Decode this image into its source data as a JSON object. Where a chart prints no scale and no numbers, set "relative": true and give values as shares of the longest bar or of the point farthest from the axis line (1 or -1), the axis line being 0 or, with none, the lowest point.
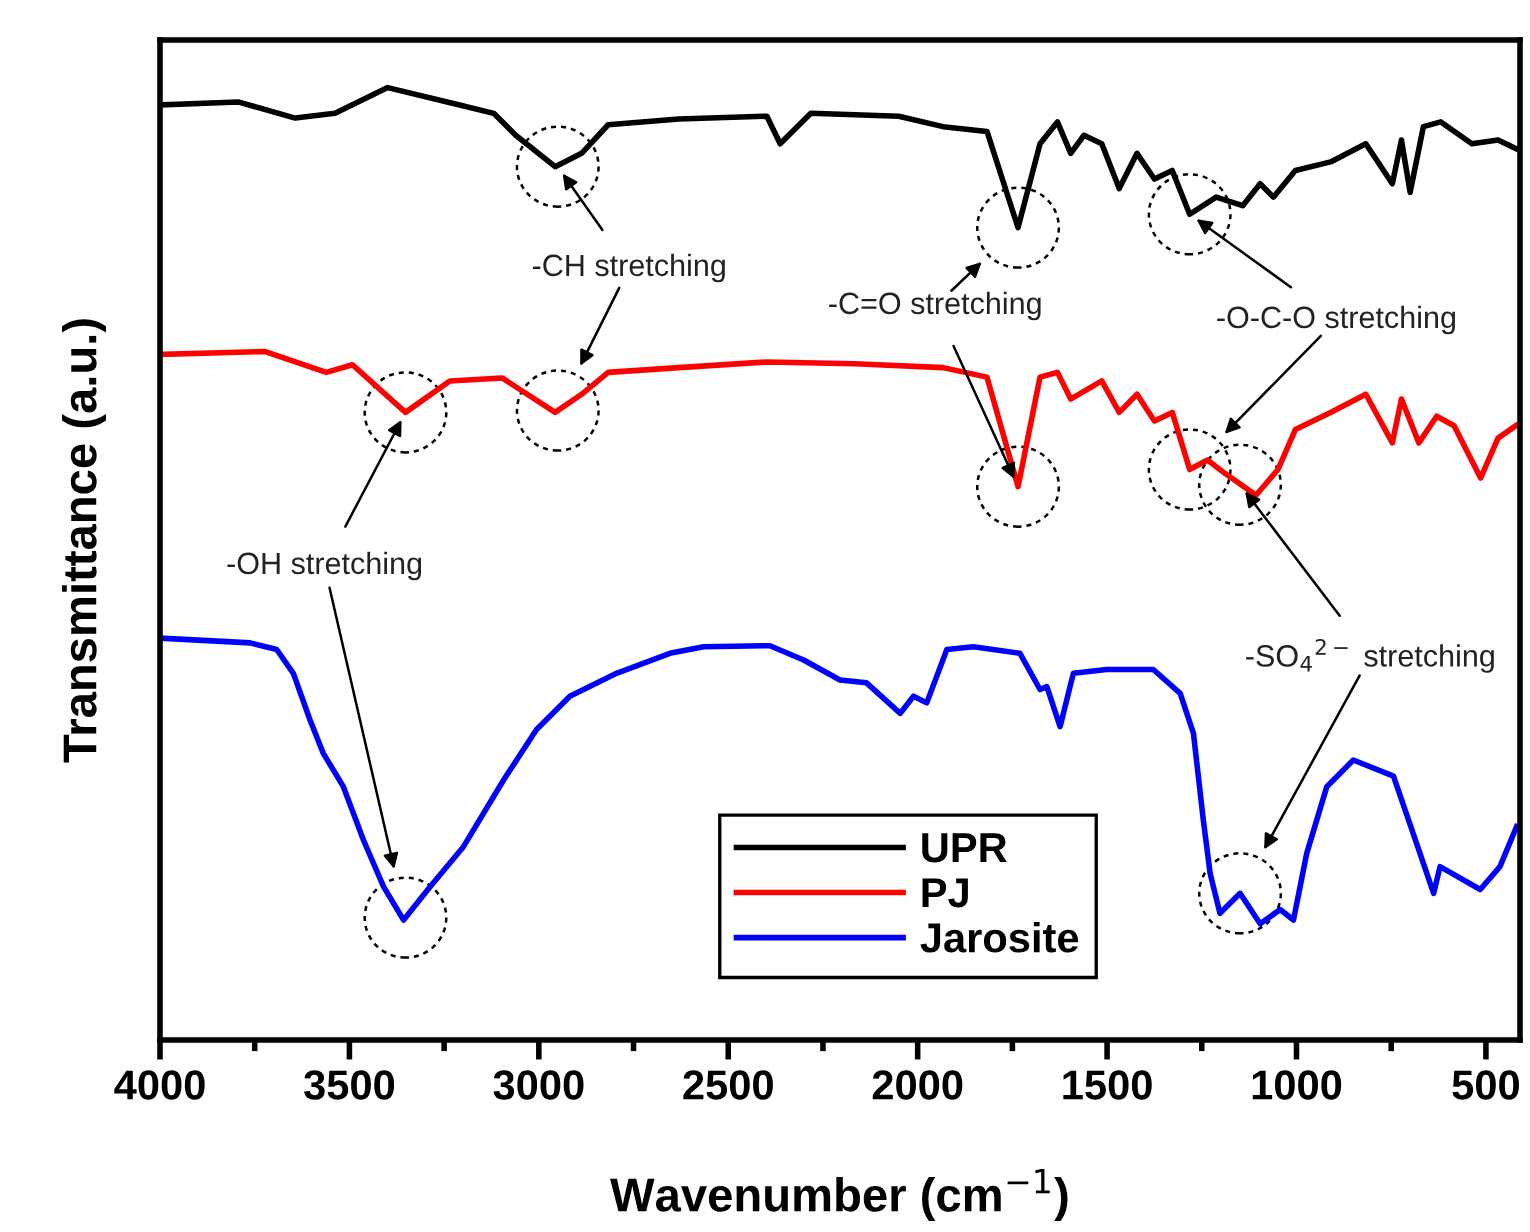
{
  "chart_data": {
    "type": "line",
    "xlabel": "Wavenumber (cm$^{−1}$)",
    "ylabel": "Transmittance (a.u.)",
    "relative": true,
    "tick_labels": "x",
    "legend": "bottom",
    "grid": false,
    "xlim": [
      4000,
      410
    ],
    "xticks": [
      4000,
      {
        "value": 3750,
        "label": null
      },
      3500,
      {
        "value": 3250,
        "label": null
      },
      3000,
      {
        "value": 2750,
        "label": null
      },
      2500,
      {
        "value": 2250,
        "label": null
      },
      2000,
      {
        "value": 1750,
        "label": null
      },
      1500,
      {
        "value": 1250,
        "label": null
      },
      1000,
      {
        "value": 750,
        "label": null
      },
      500
    ],
    "series": [
      {
        "name": "UPR",
        "color": "#000000",
        "x": [
          3992,
          3794,
          3643,
          3538,
          3399,
          3212,
          3119,
          3061,
          2957,
          2887,
          2817,
          2631,
          2398,
          2363,
          2282,
          2050,
          1933,
          1817,
          1735,
          1677,
          1631,
          1596,
          1561,
          1514,
          1468,
          1421,
          1375,
          1328,
          1282,
          1212,
          1142,
          1096,
          1061,
          1003,
          910,
          817,
          747,
          723,
          700,
          665,
          619,
          537,
          468,
          421
        ],
        "values": [
          0.982,
          0.985,
          0.968,
          0.973,
          1.0,
          0.982,
          0.973,
          0.95,
          0.917,
          0.931,
          0.961,
          0.967,
          0.97,
          0.941,
          0.973,
          0.97,
          0.959,
          0.954,
          0.853,
          0.941,
          0.964,
          0.931,
          0.95,
          0.941,
          0.894,
          0.931,
          0.904,
          0.913,
          0.867,
          0.885,
          0.876,
          0.899,
          0.885,
          0.913,
          0.922,
          0.941,
          0.899,
          0.945,
          0.89,
          0.959,
          0.964,
          0.941,
          0.945,
          0.936
        ]
      },
      {
        "name": "PJ",
        "color": "#ff0000",
        "x": [
          3992,
          3724,
          3561,
          3492,
          3352,
          3235,
          3096,
          3050,
          2957,
          2887,
          2817,
          2631,
          2398,
          2166,
          1933,
          1817,
          1735,
          1677,
          1631,
          1596,
          1514,
          1468,
          1421,
          1375,
          1328,
          1282,
          1235,
          1189,
          1107,
          1049,
          1003,
          910,
          817,
          747,
          723,
          677,
          630,
          584,
          514,
          468,
          421
        ],
        "values": [
          0.72,
          0.723,
          0.701,
          0.709,
          0.659,
          0.692,
          0.695,
          0.683,
          0.659,
          0.678,
          0.701,
          0.706,
          0.712,
          0.71,
          0.706,
          0.696,
          0.581,
          0.696,
          0.701,
          0.673,
          0.692,
          0.659,
          0.678,
          0.65,
          0.659,
          0.599,
          0.609,
          0.595,
          0.572,
          0.599,
          0.641,
          0.659,
          0.678,
          0.627,
          0.673,
          0.627,
          0.655,
          0.645,
          0.59,
          0.632,
          0.645
        ]
      },
      {
        "name": "Jarosite",
        "color": "#0000ff",
        "x": [
          4000,
          3762,
          3692,
          3648,
          3604,
          3569,
          3516,
          3463,
          3410,
          3357,
          3287,
          3199,
          3093,
          3006,
          2918,
          2795,
          2654,
          2565,
          2390,
          2301,
          2205,
          2135,
          2046,
          2011,
          1976,
          1923,
          1853,
          1730,
          1677,
          1659,
          1624,
          1589,
          1501,
          1378,
          1307,
          1272,
          1246,
          1228,
          1202,
          1149,
          1096,
          1043,
          1008,
          973,
          920,
          850,
          744,
          674,
          638,
          621,
          515,
          463,
          419
        ],
        "values": [
          0.422,
          0.417,
          0.41,
          0.385,
          0.336,
          0.301,
          0.266,
          0.21,
          0.161,
          0.126,
          0.161,
          0.203,
          0.273,
          0.326,
          0.361,
          0.385,
          0.406,
          0.413,
          0.414,
          0.399,
          0.378,
          0.375,
          0.343,
          0.361,
          0.354,
          0.41,
          0.413,
          0.406,
          0.368,
          0.371,
          0.329,
          0.385,
          0.389,
          0.389,
          0.364,
          0.322,
          0.231,
          0.175,
          0.133,
          0.154,
          0.122,
          0.137,
          0.126,
          0.196,
          0.266,
          0.294,
          0.277,
          0.196,
          0.154,
          0.182,
          0.158,
          0.182,
          0.224
        ]
      }
    ],
    "annotations": [
      {
        "text": "-CH stretching",
        "x": 2950,
        "y": 0.917
      },
      {
        "text": "-C=O stretching",
        "x": 1735,
        "y": 0.581
      },
      {
        "text": "-O-C-O stretching",
        "x": 1282,
        "y": 0.867
      },
      {
        "text": "-OH stretching",
        "x": 3352,
        "y": 0.659
      },
      {
        "text": "-SO$_{4}$$^{2−}$ stretching",
        "x": 1149,
        "y": 0.583
      }
    ]
  }
}
